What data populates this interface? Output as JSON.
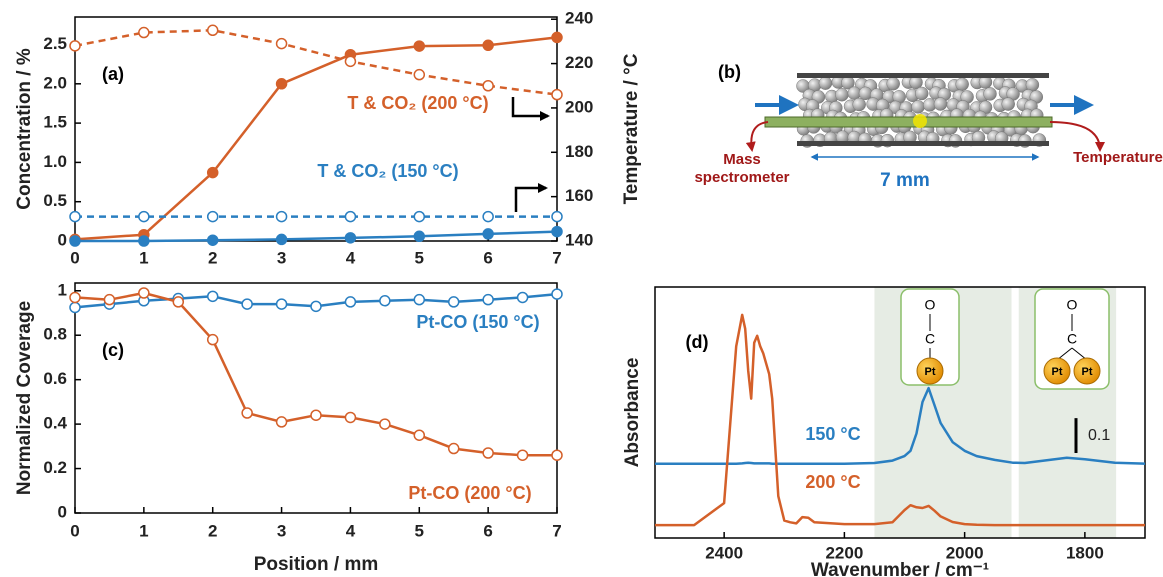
{
  "chart_data": [
    {
      "type": "line",
      "panel_label": "(a)",
      "ylabel": "Concentration / %",
      "y2label": "Temperature / °C",
      "annotations": [
        "T & CO₂ (200 °C)",
        "T & CO₂ (150 °C)"
      ],
      "annotation_colors": [
        "#d4602a",
        "#2a7fc1"
      ],
      "x": [
        0,
        1,
        2,
        3,
        4,
        5,
        6,
        7
      ],
      "xlim": [
        0,
        7
      ],
      "xticks": [
        0,
        1,
        2,
        3,
        4,
        5,
        6,
        7
      ],
      "ylim": [
        0,
        2.85
      ],
      "yticks": [
        0,
        0.5,
        {
          "value": 1,
          "label": "1.0"
        },
        1.5,
        {
          "value": 2,
          "label": "2.0"
        },
        2.5
      ],
      "y2lim": [
        140,
        241
      ],
      "y2ticks": [
        140,
        160,
        180,
        200,
        220,
        240
      ],
      "series": [
        {
          "color": "#d4602a",
          "marker": "filled",
          "line_style": "solid",
          "values": [
            0.02,
            0.08,
            0.87,
            2.0,
            2.37,
            2.48,
            2.49,
            2.59
          ]
        },
        {
          "color": "#d4602a",
          "marker": "open",
          "line_style": "dashed",
          "axis": "y2",
          "values": [
            228,
            234,
            235,
            229,
            221,
            215,
            210,
            206
          ]
        },
        {
          "color": "#2a7fc1",
          "marker": "filled",
          "line_style": "solid",
          "values": [
            0,
            0,
            0.01,
            0.02,
            0.04,
            0.06,
            0.09,
            0.12
          ]
        },
        {
          "color": "#2a7fc1",
          "marker": "open",
          "line_style": "dashed",
          "axis": "y2",
          "values": [
            151,
            151,
            151,
            151,
            151,
            151,
            151,
            151
          ]
        }
      ]
    },
    {
      "type": "line",
      "panel_label": "(c)",
      "xlabel": "Position / mm",
      "ylabel": "Normalized Coverage",
      "x": [
        0,
        0.5,
        1,
        1.5,
        2,
        2.5,
        3,
        3.5,
        4,
        4.5,
        5,
        5.5,
        6,
        6.5,
        7
      ],
      "xlim": [
        0,
        7
      ],
      "xticks": [
        0,
        1,
        2,
        3,
        4,
        5,
        6,
        7
      ],
      "ylim": [
        0,
        1.035
      ],
      "yticks": [
        0,
        0.2,
        0.4,
        0.6,
        0.8,
        1
      ],
      "series": [
        {
          "name": "Pt-CO (150 °C)",
          "color": "#2a7fc1",
          "marker": "open",
          "line_style": "solid",
          "values": [
            0.925,
            0.94,
            0.955,
            0.965,
            0.975,
            0.94,
            0.94,
            0.93,
            0.95,
            0.955,
            0.96,
            0.95,
            0.96,
            0.97,
            0.985
          ]
        },
        {
          "name": "Pt-CO (200 °C)",
          "color": "#d4602a",
          "marker": "open",
          "line_style": "solid",
          "values": [
            0.97,
            0.96,
            0.99,
            0.95,
            0.78,
            0.45,
            0.41,
            0.44,
            0.43,
            0.4,
            0.35,
            0.29,
            0.27,
            0.26,
            0.26
          ]
        }
      ]
    },
    {
      "type": "line",
      "panel_label": "(d)",
      "xlabel": "Wavenumber / cm⁻¹",
      "ylabel": "Absorbance",
      "x": [
        2515,
        2450,
        2400,
        2380,
        2370,
        2365,
        2360,
        2355,
        2350,
        2345,
        2340,
        2335,
        2330,
        2325,
        2320,
        2310,
        2300,
        2290,
        2280,
        2270,
        2260,
        2250,
        2200,
        2150,
        2120,
        2100,
        2090,
        2080,
        2070,
        2060,
        2050,
        2040,
        2020,
        2000,
        1980,
        1950,
        1920,
        1900,
        1850,
        1830,
        1800,
        1750,
        1700
      ],
      "xlim": [
        2515,
        1700
      ],
      "xticks": [
        2400,
        2200,
        2000,
        1800
      ],
      "ylim": [
        0,
        0.72
      ],
      "shaded_bands": [
        [
          2150,
          1922
        ],
        [
          1910,
          1748
        ]
      ],
      "band_color": "#e6ece4",
      "scale_bar": 0.1,
      "insets": [
        {
          "labels": [
            "O",
            "C",
            "Pt"
          ]
        },
        {
          "labels": [
            "O",
            "C",
            "Pt",
            "Pt"
          ]
        }
      ],
      "series": [
        {
          "name": "150 °C",
          "color": "#2a7fc1",
          "marker": "none",
          "line_style": "solid",
          "values": [
            0.213,
            0.213,
            0.213,
            0.213,
            0.214,
            0.215,
            0.216,
            0.215,
            0.214,
            0.214,
            0.214,
            0.214,
            0.214,
            0.214,
            0.213,
            0.213,
            0.213,
            0.213,
            0.213,
            0.213,
            0.213,
            0.213,
            0.213,
            0.215,
            0.222,
            0.235,
            0.25,
            0.3,
            0.39,
            0.43,
            0.38,
            0.33,
            0.275,
            0.25,
            0.235,
            0.224,
            0.216,
            0.215,
            0.226,
            0.23,
            0.226,
            0.216,
            0.213
          ]
        },
        {
          "name": "200 °C",
          "color": "#d4602a",
          "marker": "none",
          "line_style": "solid",
          "values": [
            0.037,
            0.037,
            0.1,
            0.55,
            0.64,
            0.6,
            0.48,
            0.4,
            0.56,
            0.58,
            0.55,
            0.53,
            0.5,
            0.47,
            0.4,
            0.12,
            0.05,
            0.045,
            0.042,
            0.06,
            0.058,
            0.045,
            0.04,
            0.04,
            0.045,
            0.08,
            0.094,
            0.088,
            0.086,
            0.092,
            0.078,
            0.062,
            0.046,
            0.04,
            0.038,
            0.037,
            0.037,
            0.037,
            0.037,
            0.037,
            0.037,
            0.037,
            0.037
          ]
        }
      ]
    }
  ],
  "schematic": {
    "panel_label": "(b)",
    "left_label": [
      "Mass",
      "spectrometer"
    ],
    "right_label": "Temperature",
    "length_label": "7 mm"
  }
}
